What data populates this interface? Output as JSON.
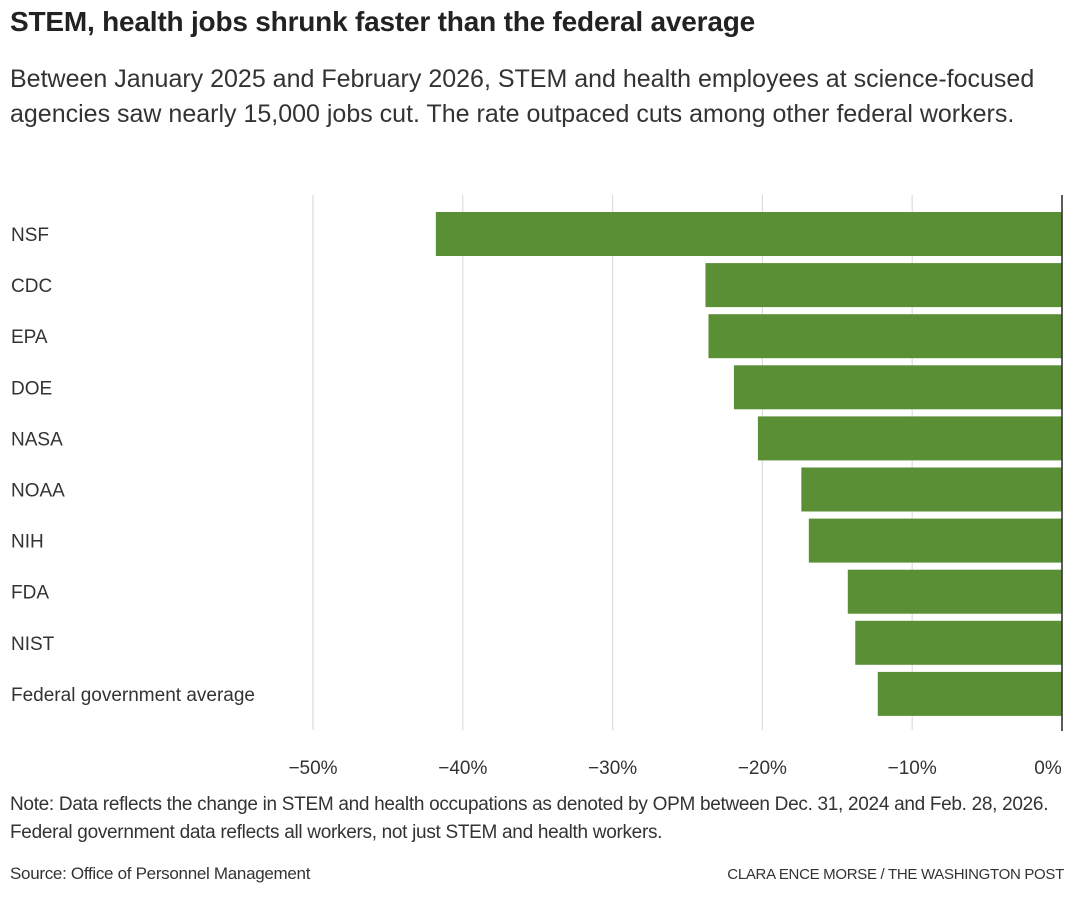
{
  "header": {
    "title": "STEM, health jobs shrunk faster than the federal average",
    "subtitle": "Between January 2025 and February 2026, STEM and health employees at science-focused agencies saw nearly 15,000 jobs cut. The rate outpaced cuts among other federal workers."
  },
  "footer": {
    "note": "Note: Data reflects the change in STEM and health occupations as denoted by OPM between Dec. 31, 2024 and Feb. 28, 2026. Federal government data reflects all workers, not just STEM and health workers.",
    "source": "Source: Office of Personnel Management",
    "credit": "CLARA ENCE MORSE / THE WASHINGTON POST"
  },
  "colors": {
    "bar": "#5b8f36",
    "gridline": "#dddddd",
    "zero_line": "#333333",
    "text": "#333333"
  },
  "chart_data": {
    "type": "bar",
    "orientation": "horizontal",
    "title": "STEM, health jobs shrunk faster than the federal average",
    "xlabel": "",
    "ylabel": "",
    "categories": [
      "NSF",
      "CDC",
      "EPA",
      "DOE",
      "NASA",
      "NOAA",
      "NIH",
      "FDA",
      "NIST",
      "Federal government average"
    ],
    "values": [
      -41.8,
      -23.8,
      -23.6,
      -21.9,
      -20.3,
      -17.4,
      -16.9,
      -14.3,
      -13.8,
      -12.3
    ],
    "unit": "%",
    "xlim": [
      -50,
      0
    ],
    "xticks": [
      -50,
      -40,
      -30,
      -20,
      -10,
      0
    ],
    "xtick_labels": [
      "−50%",
      "−40%",
      "−30%",
      "−20%",
      "−10%",
      "0%"
    ],
    "grid": true,
    "legend": "none"
  }
}
